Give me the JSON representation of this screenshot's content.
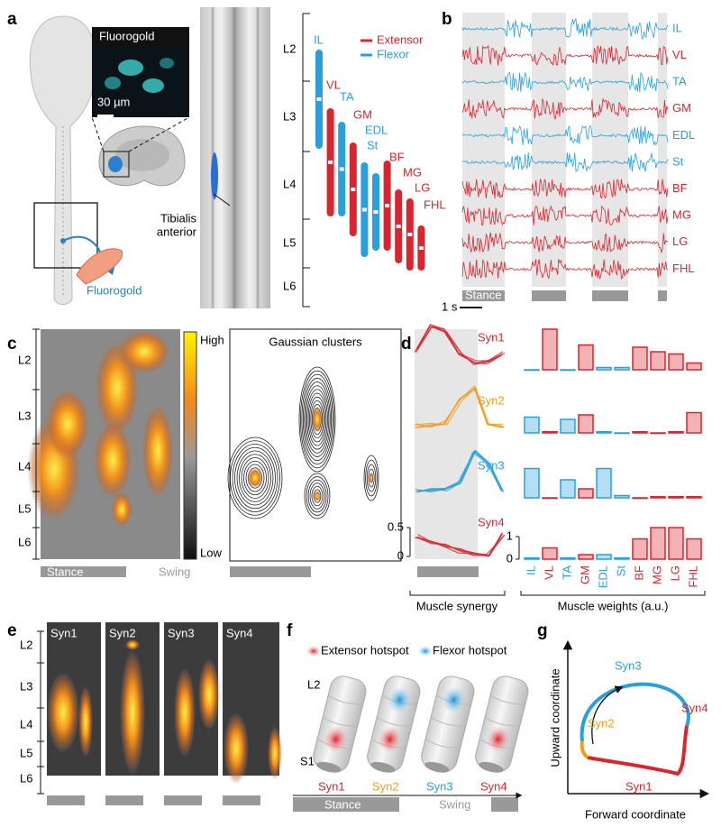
{
  "panel_a": {
    "label": "a",
    "inset_title": "Fluorogold",
    "scale_bar": "30 µm",
    "target_muscle": [
      "Tibialis",
      "anterior"
    ],
    "tracer": "Fluorogold",
    "segments": [
      "L2",
      "L3",
      "L4",
      "L5",
      "L6"
    ],
    "legend": [
      "Extensor",
      "Flexor"
    ],
    "muscles": [
      {
        "name": "IL",
        "group": "Flexor"
      },
      {
        "name": "VL",
        "group": "Extensor"
      },
      {
        "name": "TA",
        "group": "Flexor"
      },
      {
        "name": "GM",
        "group": "Extensor"
      },
      {
        "name": "EDL",
        "group": "Flexor"
      },
      {
        "name": "St",
        "group": "Flexor"
      },
      {
        "name": "BF",
        "group": "Extensor"
      },
      {
        "name": "MG",
        "group": "Extensor"
      },
      {
        "name": "LG",
        "group": "Extensor"
      },
      {
        "name": "FHL",
        "group": "Extensor"
      }
    ]
  },
  "panel_b": {
    "label": "b",
    "phase": "Stance",
    "time_scale": "1 s"
  },
  "panel_c": {
    "label": "c",
    "segments": [
      "L2",
      "L3",
      "L4",
      "L5",
      "L6"
    ],
    "colorbar": [
      "High",
      "Low"
    ],
    "phases": [
      "Stance",
      "Swing"
    ],
    "cluster_title": "Gaussian clusters"
  },
  "panel_d": {
    "label": "d",
    "synergy_ticks": [
      0,
      0.5
    ],
    "weight_ticks": [
      0,
      1
    ],
    "synergy_caption": "Muscle synergy",
    "weights_caption": "Muscle weights (a.u.)",
    "synergies": [
      {
        "name": "Syn1",
        "weights": [
          0,
          1.8,
          0,
          1.1,
          0.1,
          0.1,
          1.0,
          0.8,
          0.7,
          0.3
        ]
      },
      {
        "name": "Syn2",
        "weights": [
          0.7,
          0.05,
          0.6,
          0.8,
          0.05,
          0,
          0.05,
          0,
          0.05,
          0.9
        ]
      },
      {
        "name": "Syn3",
        "weights": [
          1.3,
          0,
          0.8,
          0.4,
          1.3,
          0.1,
          0,
          0.05,
          0.05,
          0.05
        ]
      },
      {
        "name": "Syn4",
        "weights": [
          0.05,
          0.5,
          0.05,
          0.2,
          0.2,
          0.05,
          0.9,
          1.4,
          1.4,
          0.9
        ]
      }
    ]
  },
  "panel_e": {
    "label": "e",
    "synergies": [
      "Syn1",
      "Syn2",
      "Syn3",
      "Syn4"
    ],
    "segments": [
      "L2",
      "L3",
      "L4",
      "L5",
      "L6"
    ]
  },
  "panel_f": {
    "label": "f",
    "legend": [
      "Extensor hotspot",
      "Flexor hotspot"
    ],
    "landmarks": [
      "L2",
      "S1"
    ],
    "synergies": [
      "Syn1",
      "Syn2",
      "Syn3",
      "Syn4"
    ],
    "phases": [
      "Stance",
      "Swing"
    ]
  },
  "panel_g": {
    "label": "g",
    "synergies": [
      "Syn1",
      "Syn2",
      "Syn3",
      "Syn4"
    ],
    "y_label": "Upward coordinate",
    "x_label": "Forward coordinate"
  }
}
